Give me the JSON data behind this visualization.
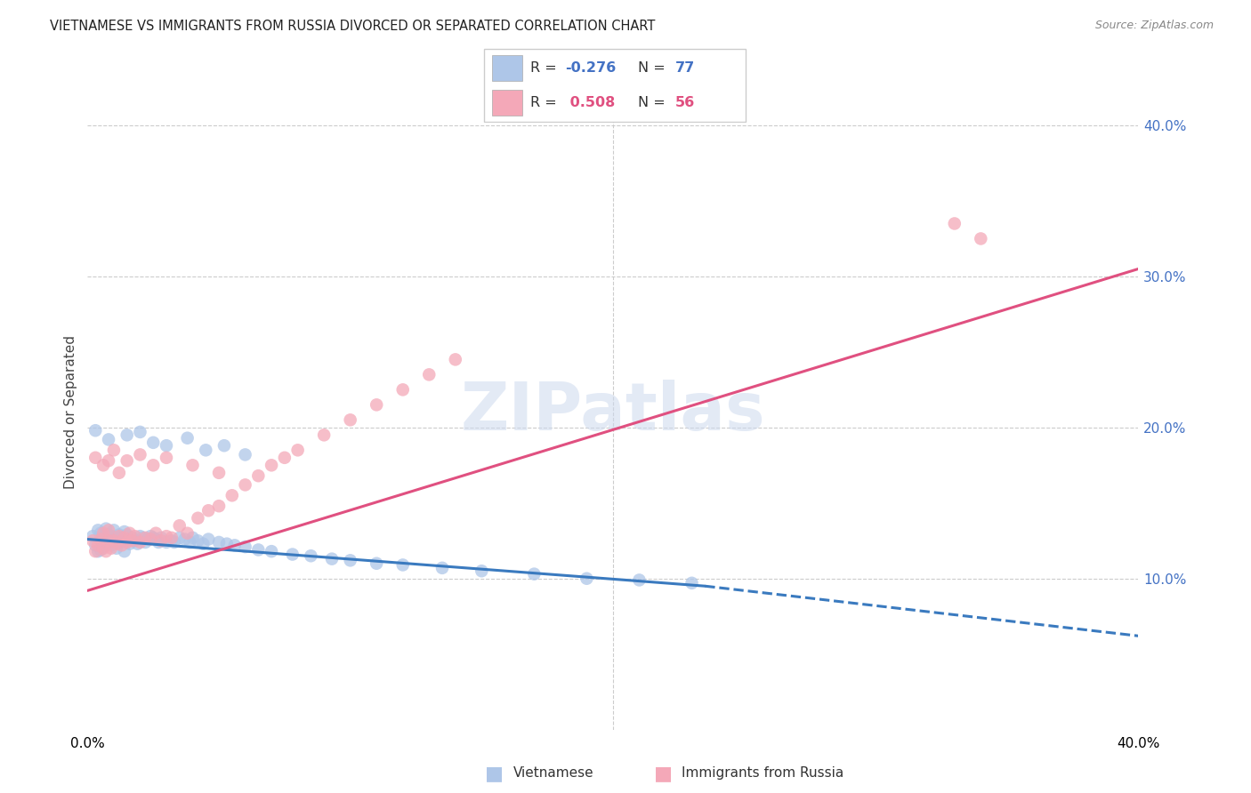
{
  "title": "VIETNAMESE VS IMMIGRANTS FROM RUSSIA DIVORCED OR SEPARATED CORRELATION CHART",
  "source": "Source: ZipAtlas.com",
  "ylabel": "Divorced or Separated",
  "xlim": [
    0.0,
    0.4
  ],
  "ylim": [
    0.0,
    0.42
  ],
  "grid_color": "#cccccc",
  "background_color": "#ffffff",
  "vietnamese_color": "#aec6e8",
  "russia_color": "#f4a8b8",
  "vietnamese_line_color": "#3a7abf",
  "russia_line_color": "#e05080",
  "legend_R1": "-0.276",
  "legend_N1": "77",
  "legend_R2": "0.508",
  "legend_N2": "56",
  "watermark": "ZIPatlas",
  "viet_line_x0": 0.0,
  "viet_line_y0": 0.126,
  "viet_line_x1": 0.235,
  "viet_line_y1": 0.095,
  "viet_line_x2": 0.4,
  "viet_line_y2": 0.062,
  "russia_line_x0": 0.0,
  "russia_line_y0": 0.092,
  "russia_line_x1": 0.4,
  "russia_line_y1": 0.305,
  "viet_x": [
    0.002,
    0.003,
    0.004,
    0.004,
    0.005,
    0.005,
    0.005,
    0.006,
    0.006,
    0.007,
    0.007,
    0.008,
    0.008,
    0.009,
    0.009,
    0.01,
    0.01,
    0.011,
    0.011,
    0.012,
    0.012,
    0.013,
    0.014,
    0.014,
    0.015,
    0.015,
    0.016,
    0.017,
    0.018,
    0.019,
    0.02,
    0.021,
    0.022,
    0.023,
    0.024,
    0.025,
    0.026,
    0.027,
    0.028,
    0.03,
    0.032,
    0.033,
    0.035,
    0.037,
    0.039,
    0.04,
    0.042,
    0.044,
    0.046,
    0.05,
    0.053,
    0.056,
    0.06,
    0.065,
    0.07,
    0.078,
    0.085,
    0.093,
    0.1,
    0.11,
    0.12,
    0.135,
    0.15,
    0.17,
    0.19,
    0.21,
    0.23,
    0.003,
    0.008,
    0.015,
    0.02,
    0.025,
    0.03,
    0.038,
    0.045,
    0.052,
    0.06
  ],
  "viet_y": [
    0.128,
    0.122,
    0.132,
    0.118,
    0.125,
    0.13,
    0.119,
    0.127,
    0.121,
    0.126,
    0.133,
    0.124,
    0.129,
    0.122,
    0.128,
    0.127,
    0.132,
    0.125,
    0.12,
    0.124,
    0.129,
    0.127,
    0.131,
    0.118,
    0.125,
    0.129,
    0.123,
    0.127,
    0.125,
    0.123,
    0.128,
    0.127,
    0.124,
    0.126,
    0.128,
    0.127,
    0.126,
    0.124,
    0.127,
    0.124,
    0.125,
    0.124,
    0.127,
    0.126,
    0.124,
    0.127,
    0.125,
    0.123,
    0.126,
    0.124,
    0.123,
    0.122,
    0.121,
    0.119,
    0.118,
    0.116,
    0.115,
    0.113,
    0.112,
    0.11,
    0.109,
    0.107,
    0.105,
    0.103,
    0.1,
    0.099,
    0.097,
    0.198,
    0.192,
    0.195,
    0.197,
    0.19,
    0.188,
    0.193,
    0.185,
    0.188,
    0.182
  ],
  "russia_x": [
    0.002,
    0.003,
    0.004,
    0.005,
    0.006,
    0.006,
    0.007,
    0.008,
    0.008,
    0.009,
    0.01,
    0.011,
    0.012,
    0.013,
    0.014,
    0.015,
    0.016,
    0.017,
    0.018,
    0.02,
    0.022,
    0.024,
    0.026,
    0.028,
    0.03,
    0.032,
    0.035,
    0.038,
    0.042,
    0.046,
    0.05,
    0.055,
    0.06,
    0.065,
    0.07,
    0.075,
    0.08,
    0.09,
    0.1,
    0.11,
    0.12,
    0.13,
    0.14,
    0.003,
    0.006,
    0.008,
    0.01,
    0.012,
    0.015,
    0.02,
    0.025,
    0.03,
    0.04,
    0.05,
    0.33,
    0.34
  ],
  "russia_y": [
    0.125,
    0.118,
    0.122,
    0.126,
    0.12,
    0.13,
    0.118,
    0.125,
    0.132,
    0.12,
    0.125,
    0.123,
    0.128,
    0.122,
    0.127,
    0.124,
    0.13,
    0.125,
    0.128,
    0.124,
    0.127,
    0.126,
    0.13,
    0.125,
    0.128,
    0.127,
    0.135,
    0.13,
    0.14,
    0.145,
    0.148,
    0.155,
    0.162,
    0.168,
    0.175,
    0.18,
    0.185,
    0.195,
    0.205,
    0.215,
    0.225,
    0.235,
    0.245,
    0.18,
    0.175,
    0.178,
    0.185,
    0.17,
    0.178,
    0.182,
    0.175,
    0.18,
    0.175,
    0.17,
    0.335,
    0.325
  ]
}
